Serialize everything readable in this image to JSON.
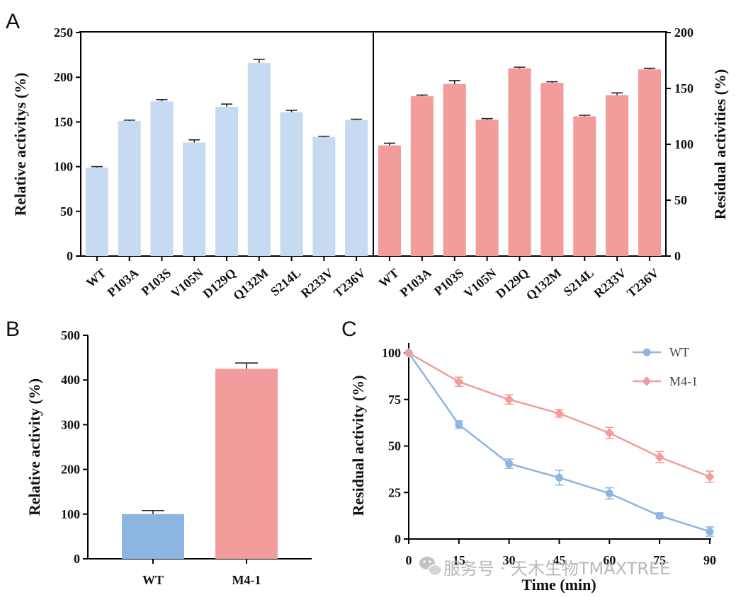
{
  "panels": {
    "a": "A",
    "b": "B",
    "c": "C"
  },
  "watermark": {
    "text": "服务号 · 天木生物TMAXTREE"
  },
  "chart_data": [
    {
      "id": "A-left",
      "type": "bar",
      "categories": [
        "WT",
        "P103A",
        "P103S",
        "V105N",
        "D129Q",
        "Q132M",
        "S214L",
        "R233V",
        "T236V"
      ],
      "values": [
        99,
        151,
        173,
        127,
        167,
        216,
        161,
        133,
        152
      ],
      "errors": [
        1,
        1,
        2,
        3,
        3,
        4,
        2,
        1,
        1
      ],
      "ylabel": "Relative activitys (%)",
      "ylim": [
        0,
        250
      ],
      "yticks": [
        0,
        50,
        100,
        150,
        200,
        250
      ],
      "color": "#c6daf1"
    },
    {
      "id": "A-right",
      "type": "bar",
      "categories": [
        "WT",
        "P103A",
        "P103S",
        "V105N",
        "D129Q",
        "Q132M",
        "S214L",
        "R233V",
        "T236V"
      ],
      "values": [
        99,
        143,
        154,
        122,
        168,
        155,
        125,
        144,
        167
      ],
      "errors": [
        2,
        1,
        3,
        1,
        1,
        1,
        1,
        2,
        1
      ],
      "ylabel": "Residual activities (%)",
      "ylim": [
        0,
        200
      ],
      "yticks": [
        0,
        50,
        100,
        150,
        200
      ],
      "color": "#f29c9c"
    },
    {
      "id": "B",
      "type": "bar",
      "categories": [
        "WT",
        "M4-1"
      ],
      "values": [
        100,
        425
      ],
      "errors": [
        8,
        13
      ],
      "colors": [
        "#8db5e2",
        "#f29c9c"
      ],
      "ylabel": "Relative activity (%)",
      "ylim": [
        0,
        500
      ],
      "yticks": [
        0,
        100,
        200,
        300,
        400,
        500
      ]
    },
    {
      "id": "C",
      "type": "line",
      "x": [
        0,
        15,
        30,
        45,
        60,
        75,
        90
      ],
      "series": [
        {
          "name": "WT",
          "values": [
            100,
            61.5,
            40.5,
            33,
            24.5,
            12.5,
            4
          ],
          "errors": [
            0,
            2,
            2.5,
            4,
            3,
            1.5,
            2.5
          ],
          "color": "#8db5e2"
        },
        {
          "name": "M4-1",
          "values": [
            100,
            84.5,
            75,
            67.5,
            57,
            44,
            33.5
          ],
          "errors": [
            0,
            2.5,
            2.5,
            2,
            3,
            3,
            3
          ],
          "color": "#f29c9c"
        }
      ],
      "xlabel": "Time (min)",
      "ylabel": "Residual activity (%)",
      "xlim": [
        0,
        90
      ],
      "ylim": [
        0,
        100
      ],
      "xticks": [
        0,
        15,
        30,
        45,
        60,
        75,
        90
      ],
      "yticks": [
        0,
        25,
        50,
        75,
        100
      ],
      "legend": "top-right"
    }
  ]
}
